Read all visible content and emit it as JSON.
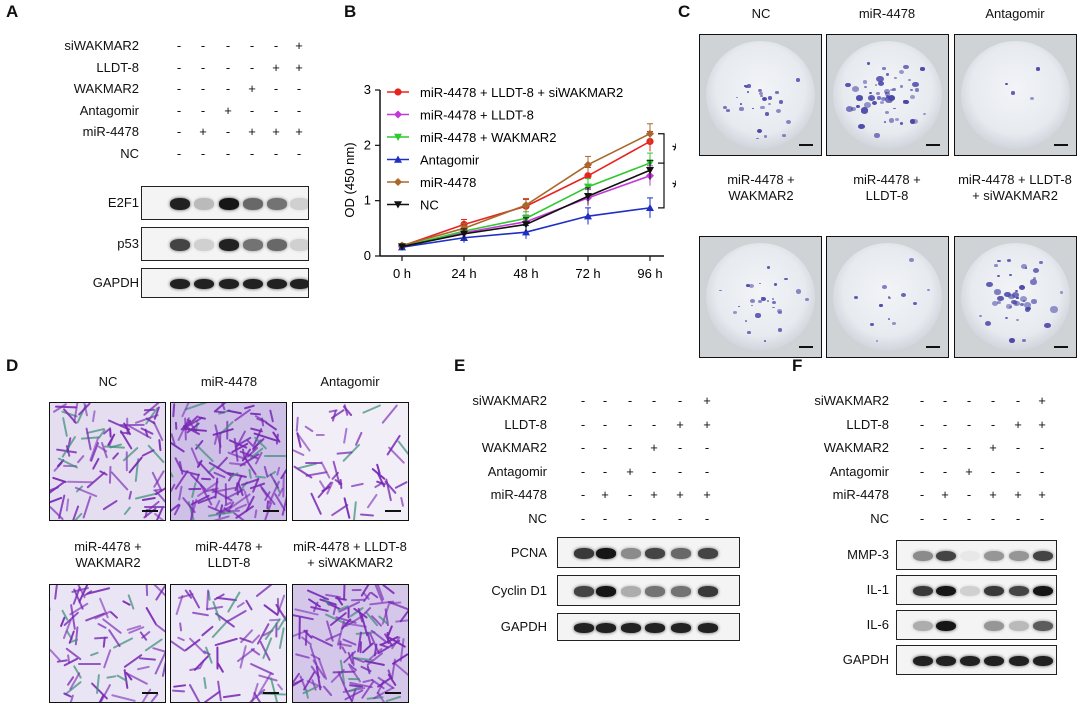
{
  "panels": {
    "A": "A",
    "B": "B",
    "C": "C",
    "D": "D",
    "E": "E",
    "F": "F"
  },
  "conditions": [
    "siWAKMAR2",
    "LLDT-8",
    "WAKMAR2",
    "Antagomir",
    "miR-4478",
    "NC"
  ],
  "design": [
    [
      "-",
      "-",
      "-",
      "-",
      "-",
      "+"
    ],
    [
      "-",
      "-",
      "-",
      "-",
      "+",
      "+"
    ],
    [
      "-",
      "-",
      "-",
      "+",
      "-",
      "-"
    ],
    [
      "-",
      "-",
      "+",
      "-",
      "-",
      "-"
    ],
    [
      "-",
      "+",
      "-",
      "+",
      "+",
      "+"
    ],
    [
      "-",
      "-",
      "-",
      "-",
      "-",
      "-"
    ]
  ],
  "blotA": {
    "proteins": [
      "E2F1",
      "p53",
      "GAPDH"
    ],
    "intensity": [
      [
        0.9,
        0.25,
        0.95,
        0.6,
        0.55,
        0.15
      ],
      [
        0.75,
        0.15,
        0.9,
        0.55,
        0.6,
        0.15
      ],
      [
        0.9,
        0.9,
        0.9,
        0.9,
        0.9,
        0.9
      ]
    ]
  },
  "blotE": {
    "proteins": [
      "PCNA",
      "Cyclin D1",
      "GAPDH"
    ],
    "intensity": [
      [
        0.8,
        0.95,
        0.45,
        0.75,
        0.6,
        0.75
      ],
      [
        0.75,
        0.95,
        0.3,
        0.55,
        0.55,
        0.8
      ],
      [
        0.9,
        0.9,
        0.9,
        0.9,
        0.9,
        0.9
      ]
    ]
  },
  "blotF": {
    "proteins": [
      "MMP-3",
      "IL-1",
      "IL-6",
      "GAPDH"
    ],
    "intensity": [
      [
        0.45,
        0.75,
        0.05,
        0.4,
        0.4,
        0.75
      ],
      [
        0.8,
        0.95,
        0.15,
        0.8,
        0.75,
        0.95
      ],
      [
        0.3,
        0.95,
        0.0,
        0.4,
        0.25,
        0.65
      ],
      [
        0.9,
        0.9,
        0.9,
        0.9,
        0.9,
        0.9
      ]
    ]
  },
  "chart_data": {
    "type": "line",
    "x": [
      "0 h",
      "24 h",
      "48 h",
      "72 h",
      "96 h"
    ],
    "ylabel": "OD (450 nm)",
    "ylim": [
      0,
      3
    ],
    "yticks": [
      "0",
      "1",
      "2",
      "3"
    ],
    "series": [
      {
        "name": "miR-4478 + LLDT-8 + siWAKMAR2",
        "color": "#e8231f",
        "marker": "circle",
        "values": [
          0.18,
          0.57,
          0.9,
          1.45,
          2.07
        ]
      },
      {
        "name": "miR-4478 + LLDT-8",
        "color": "#c23ad6",
        "marker": "diamond",
        "values": [
          0.17,
          0.42,
          0.62,
          1.05,
          1.45
        ]
      },
      {
        "name": "miR-4478 + WAKMAR2",
        "color": "#2fc82f",
        "marker": "tri-down",
        "values": [
          0.17,
          0.45,
          0.68,
          1.25,
          1.68
        ]
      },
      {
        "name": "Antagomir",
        "color": "#1f2fc4",
        "marker": "tri-up",
        "values": [
          0.16,
          0.33,
          0.43,
          0.72,
          0.87
        ]
      },
      {
        "name": "miR-4478",
        "color": "#a9682b",
        "marker": "diamond",
        "values": [
          0.19,
          0.5,
          0.92,
          1.65,
          2.21
        ]
      },
      {
        "name": "NC",
        "color": "#111111",
        "marker": "tri-down",
        "values": [
          0.17,
          0.4,
          0.57,
          1.08,
          1.55
        ]
      }
    ],
    "annotations": [
      "*",
      "*"
    ]
  },
  "colony": {
    "labels": [
      [
        "NC"
      ],
      [
        "miR-4478"
      ],
      [
        "Antagomir"
      ],
      [
        "miR-4478 +",
        "WAKMAR2"
      ],
      [
        "miR-4478 +",
        "LLDT-8"
      ],
      [
        "miR-4478 + LLDT-8",
        "+ siWAKMAR2"
      ]
    ],
    "density": [
      0.35,
      0.8,
      0.03,
      0.35,
      0.15,
      0.6
    ]
  },
  "transwell": {
    "labels": [
      [
        "NC"
      ],
      [
        "miR-4478"
      ],
      [
        "Antagomir"
      ],
      [
        "miR-4478 +",
        "WAKMAR2"
      ],
      [
        "miR-4478 +",
        "LLDT-8"
      ],
      [
        "miR-4478 + LLDT-8",
        "+ siWAKMAR2"
      ]
    ],
    "density": [
      0.55,
      1.0,
      0.2,
      0.4,
      0.35,
      0.9
    ]
  }
}
